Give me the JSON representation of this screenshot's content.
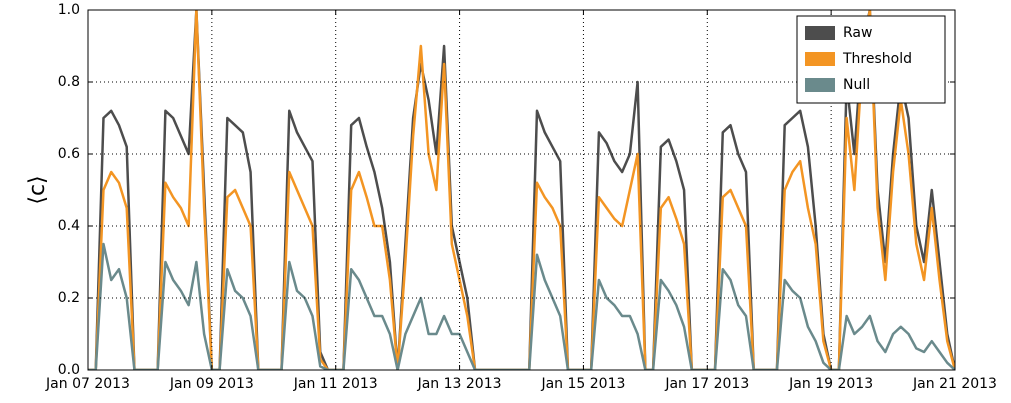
{
  "chart_data": {
    "type": "line",
    "ylabel": "⟨c⟩",
    "x": [
      0,
      0.125,
      0.25,
      0.375,
      0.5,
      0.625,
      0.75,
      0.875,
      1,
      1.125,
      1.25,
      1.375,
      1.5,
      1.625,
      1.75,
      1.875,
      2,
      2.125,
      2.25,
      2.375,
      2.5,
      2.625,
      2.75,
      2.875,
      3,
      3.125,
      3.25,
      3.375,
      3.5,
      3.625,
      3.75,
      3.875,
      4,
      4.125,
      4.25,
      4.375,
      4.5,
      4.625,
      4.75,
      4.875,
      5,
      5.125,
      5.25,
      5.375,
      5.5,
      5.625,
      5.75,
      5.875,
      6,
      6.125,
      6.25,
      6.375,
      6.5,
      6.625,
      6.75,
      6.875,
      7,
      7.125,
      7.25,
      7.375,
      7.5,
      7.625,
      7.75,
      7.875,
      8,
      8.125,
      8.25,
      8.375,
      8.5,
      8.625,
      8.75,
      8.875,
      9,
      9.125,
      9.25,
      9.375,
      9.5,
      9.625,
      9.75,
      9.875,
      10,
      10.125,
      10.25,
      10.375,
      10.5,
      10.625,
      10.75,
      10.875,
      11,
      11.125,
      11.25,
      11.375,
      11.5,
      11.625,
      11.75,
      11.875,
      12,
      12.125,
      12.25,
      12.375,
      12.5,
      12.625,
      12.75,
      12.875,
      13,
      13.125,
      13.25,
      13.375,
      13.5,
      13.625,
      13.75,
      13.875,
      14
    ],
    "series": [
      {
        "name": "Raw",
        "color": "#4d4d4d",
        "values": [
          0,
          0,
          0.7,
          0.72,
          0.68,
          0.62,
          0,
          0,
          0,
          0,
          0.72,
          0.7,
          0.65,
          0.6,
          1.0,
          0.5,
          0,
          0,
          0.7,
          0.68,
          0.66,
          0.55,
          0,
          0,
          0,
          0,
          0.72,
          0.66,
          0.62,
          0.58,
          0.05,
          0,
          0,
          0,
          0.68,
          0.7,
          0.62,
          0.55,
          0.45,
          0.3,
          0,
          0.35,
          0.7,
          0.85,
          0.75,
          0.6,
          0.9,
          0.4,
          0.3,
          0.2,
          0,
          0,
          0,
          0,
          0,
          0,
          0,
          0,
          0.72,
          0.66,
          0.62,
          0.58,
          0,
          0,
          0,
          0,
          0.66,
          0.63,
          0.58,
          0.55,
          0.6,
          0.8,
          0,
          0,
          0.62,
          0.64,
          0.58,
          0.5,
          0,
          0,
          0,
          0,
          0.66,
          0.68,
          0.6,
          0.55,
          0,
          0,
          0,
          0,
          0.68,
          0.7,
          0.72,
          0.62,
          0.4,
          0.1,
          0,
          0,
          0.8,
          0.6,
          0.9,
          1.0,
          0.5,
          0.3,
          0.6,
          0.8,
          0.7,
          0.4,
          0.3,
          0.5,
          0.3,
          0.1,
          0
        ]
      },
      {
        "name": "Threshold",
        "color": "#f39523",
        "values": [
          0,
          0,
          0.5,
          0.55,
          0.52,
          0.45,
          0,
          0,
          0,
          0,
          0.52,
          0.48,
          0.45,
          0.4,
          1.0,
          0.45,
          0,
          0,
          0.48,
          0.5,
          0.45,
          0.4,
          0,
          0,
          0,
          0,
          0.55,
          0.5,
          0.45,
          0.4,
          0.03,
          0,
          0,
          0,
          0.5,
          0.55,
          0.48,
          0.4,
          0.4,
          0.25,
          0,
          0.3,
          0.65,
          0.9,
          0.6,
          0.5,
          0.85,
          0.35,
          0.25,
          0.15,
          0,
          0,
          0,
          0,
          0,
          0,
          0,
          0,
          0.52,
          0.48,
          0.45,
          0.4,
          0,
          0,
          0,
          0,
          0.48,
          0.45,
          0.42,
          0.4,
          0.5,
          0.6,
          0,
          0,
          0.45,
          0.48,
          0.42,
          0.35,
          0,
          0,
          0,
          0,
          0.48,
          0.5,
          0.45,
          0.4,
          0,
          0,
          0,
          0,
          0.5,
          0.55,
          0.58,
          0.45,
          0.35,
          0.08,
          0,
          0,
          0.7,
          0.5,
          0.85,
          1.0,
          0.45,
          0.25,
          0.55,
          0.75,
          0.6,
          0.35,
          0.25,
          0.45,
          0.25,
          0.08,
          0
        ]
      },
      {
        "name": "Null",
        "color": "#6a8a8c",
        "values": [
          0,
          0,
          0.35,
          0.25,
          0.28,
          0.2,
          0,
          0,
          0,
          0,
          0.3,
          0.25,
          0.22,
          0.18,
          0.3,
          0.1,
          0,
          0,
          0.28,
          0.22,
          0.2,
          0.15,
          0,
          0,
          0,
          0,
          0.3,
          0.22,
          0.2,
          0.15,
          0.01,
          0,
          0,
          0,
          0.28,
          0.25,
          0.2,
          0.15,
          0.15,
          0.1,
          0,
          0.1,
          0.15,
          0.2,
          0.1,
          0.1,
          0.15,
          0.1,
          0.1,
          0.05,
          0,
          0,
          0,
          0,
          0,
          0,
          0,
          0,
          0.32,
          0.25,
          0.2,
          0.15,
          0,
          0,
          0,
          0,
          0.25,
          0.2,
          0.18,
          0.15,
          0.15,
          0.1,
          0,
          0,
          0.25,
          0.22,
          0.18,
          0.12,
          0,
          0,
          0,
          0,
          0.28,
          0.25,
          0.18,
          0.15,
          0,
          0,
          0,
          0,
          0.25,
          0.22,
          0.2,
          0.12,
          0.08,
          0.02,
          0,
          0,
          0.15,
          0.1,
          0.12,
          0.15,
          0.08,
          0.05,
          0.1,
          0.12,
          0.1,
          0.06,
          0.05,
          0.08,
          0.05,
          0.02,
          0
        ]
      }
    ],
    "xlim": [
      0,
      14
    ],
    "xticks": [
      {
        "value": 0,
        "label": "Jan 07 2013"
      },
      {
        "value": 2,
        "label": "Jan 09 2013"
      },
      {
        "value": 4,
        "label": "Jan 11 2013"
      },
      {
        "value": 6,
        "label": "Jan 13 2013"
      },
      {
        "value": 8,
        "label": "Jan 15 2013"
      },
      {
        "value": 10,
        "label": "Jan 17 2013"
      },
      {
        "value": 12,
        "label": "Jan 19 2013"
      },
      {
        "value": 14,
        "label": "Jan 21 2013"
      }
    ],
    "ylim": [
      0,
      1
    ],
    "yticks": [
      {
        "value": 0,
        "label": "0.0"
      },
      0.2,
      0.4,
      0.6,
      0.8,
      {
        "value": 1,
        "label": "1.0"
      }
    ],
    "grid": true,
    "legend": "upper right"
  }
}
